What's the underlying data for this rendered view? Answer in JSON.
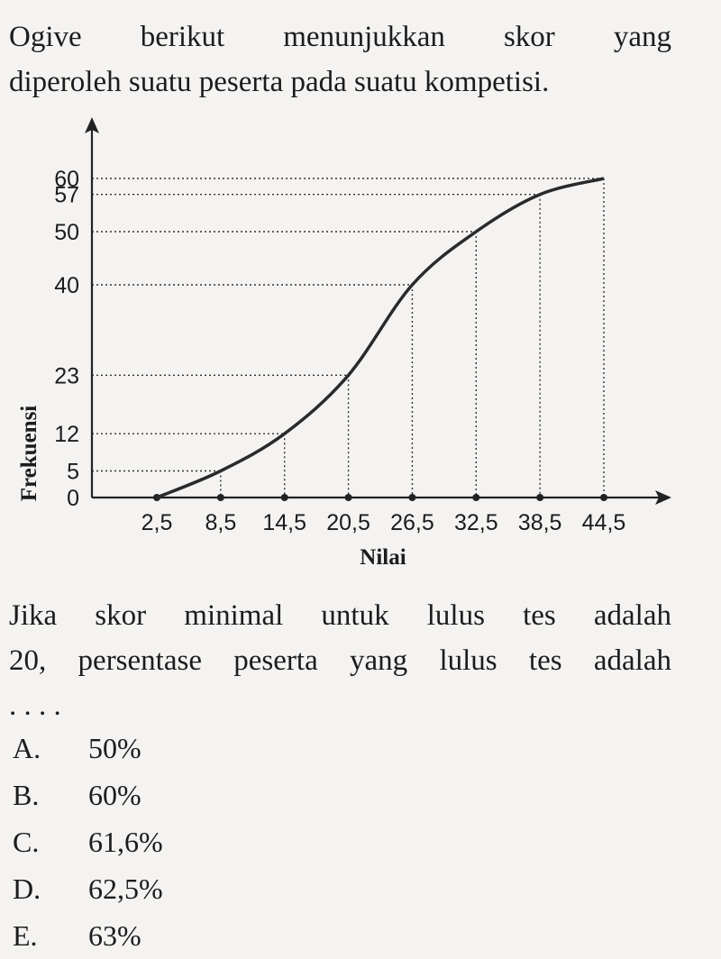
{
  "intro": {
    "line1": "Ogive berikut menunjukkan skor yang",
    "line2": "diperoleh suatu peserta pada suatu kompetisi."
  },
  "chart_data": {
    "type": "line",
    "xlabel": "Nilai",
    "ylabel": "Frekuensi",
    "x": [
      2.5,
      8.5,
      14.5,
      20.5,
      26.5,
      32.5,
      38.5,
      44.5
    ],
    "x_tick_labels": [
      "2,5",
      "8,5",
      "14,5",
      "20,5",
      "26,5",
      "32,5",
      "38,5",
      "44,5"
    ],
    "series": [
      {
        "values": [
          0,
          5,
          12,
          23,
          40,
          50,
          57,
          60
        ]
      }
    ],
    "y_ticks": [
      0,
      5,
      12,
      23,
      40,
      50,
      57,
      60
    ],
    "y_tick_labels": [
      "0",
      "5",
      "12",
      "23",
      "40",
      "50",
      "57",
      "60"
    ],
    "xlim": [
      2.5,
      44.5
    ],
    "ylim": [
      0,
      60
    ],
    "guide_lines": "dotted"
  },
  "question": {
    "line1": "Jika skor minimal untuk lulus tes adalah",
    "line2": "20, persentase peserta yang lulus tes adalah",
    "line3": ". . . ."
  },
  "options": [
    {
      "letter": "A.",
      "text": "50%"
    },
    {
      "letter": "B.",
      "text": "60%"
    },
    {
      "letter": "C.",
      "text": "61,6%"
    },
    {
      "letter": "D.",
      "text": "62,5%"
    },
    {
      "letter": "E.",
      "text": "63%"
    }
  ]
}
